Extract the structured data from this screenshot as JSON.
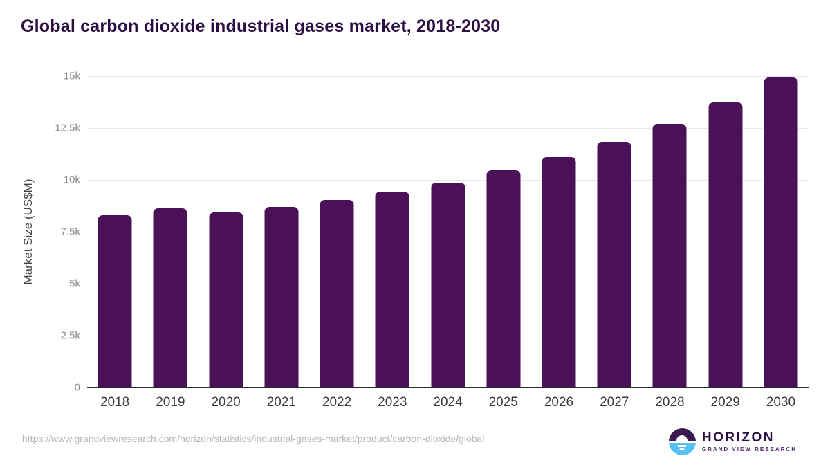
{
  "chart_data": {
    "type": "bar",
    "title": "Global carbon dioxide industrial gases market, 2018-2030",
    "xlabel": "",
    "ylabel": "Market Size (US$M)",
    "categories": [
      "2018",
      "2019",
      "2020",
      "2021",
      "2022",
      "2023",
      "2024",
      "2025",
      "2026",
      "2027",
      "2028",
      "2029",
      "2030"
    ],
    "values": [
      8300,
      8620,
      8450,
      8700,
      9020,
      9420,
      9870,
      10470,
      11100,
      11830,
      12700,
      13730,
      14950
    ],
    "unit": "US$M",
    "ylim": [
      0,
      15000
    ],
    "yticks": [
      {
        "value": 0,
        "label": "0"
      },
      {
        "value": 2500,
        "label": "2.5k"
      },
      {
        "value": 5000,
        "label": "5k"
      },
      {
        "value": 7500,
        "label": "7.5k"
      },
      {
        "value": 10000,
        "label": "10k"
      },
      {
        "value": 12500,
        "label": "12.5k"
      },
      {
        "value": 15000,
        "label": "15k"
      }
    ],
    "grid": "horizontal",
    "legend": "none"
  },
  "colors": {
    "bar": "#4a1158",
    "title": "#2d0e43",
    "gridline": "#e9e9e9",
    "axis_line": "#2b2b2b",
    "y_tick_text": "#8b8b8b",
    "x_tick_text": "#3c3c3c",
    "logo_purple": "#3b1b4f",
    "logo_blue": "#56c0f2"
  },
  "footer": {
    "source_url": "https://www.grandviewresearch.com/horizon/statistics/industrial-gases-market/product/carbon-dioxide/global",
    "logo": {
      "brand": "HORIZON",
      "sub_brand": "GRAND VIEW RESEARCH"
    }
  }
}
